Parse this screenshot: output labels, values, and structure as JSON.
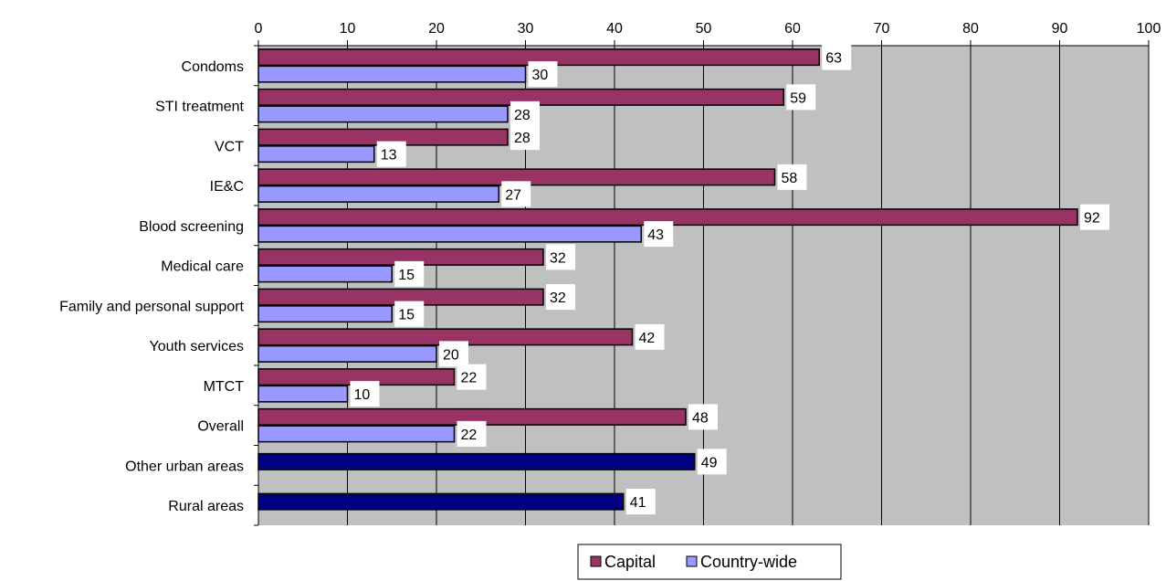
{
  "chart_data": {
    "type": "bar",
    "orientation": "horizontal",
    "categories": [
      "Condoms",
      "STI treatment",
      "VCT",
      "IE&C",
      "Blood screening",
      "Medical care",
      "Family and personal support",
      "Youth services",
      "MTCT",
      "Overall",
      "Other urban areas",
      "Rural areas"
    ],
    "series": [
      {
        "name": "Capital",
        "color": "#993366",
        "values": [
          63,
          59,
          28,
          58,
          92,
          32,
          32,
          42,
          22,
          48,
          null,
          null
        ]
      },
      {
        "name": "Country-wide",
        "color": "#9999FF",
        "values": [
          30,
          28,
          13,
          27,
          43,
          15,
          15,
          20,
          10,
          22,
          null,
          null
        ]
      }
    ],
    "extra_bars": [
      {
        "category": "Other urban areas",
        "value": 49,
        "color": "#000080"
      },
      {
        "category": "Rural areas",
        "value": 41,
        "color": "#000080"
      }
    ],
    "xlim": [
      0,
      100
    ],
    "xticks": [
      0,
      10,
      20,
      30,
      40,
      50,
      60,
      70,
      80,
      90,
      100
    ],
    "x_axis_position": "top",
    "grid": true,
    "plot_background": "#C0C0C0",
    "legend_position": "bottom",
    "title": "",
    "xlabel": "",
    "ylabel": ""
  }
}
